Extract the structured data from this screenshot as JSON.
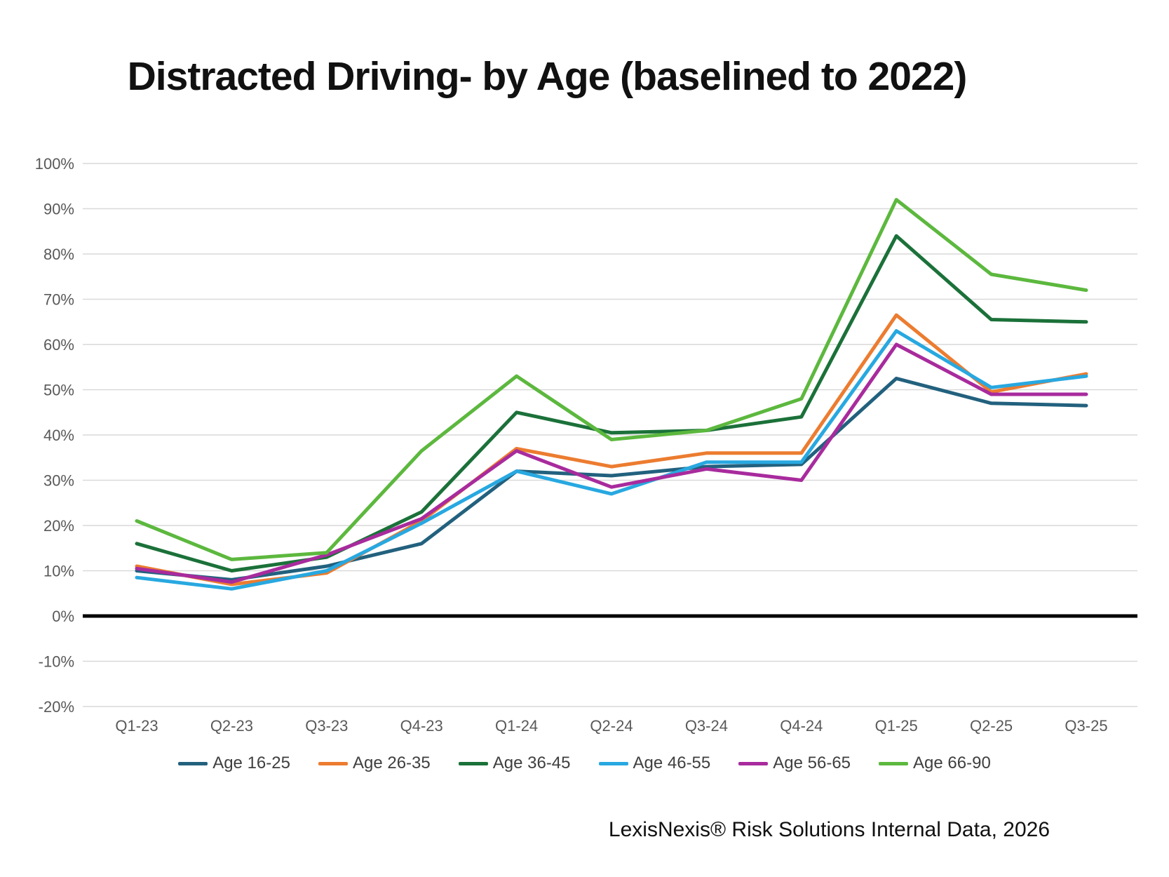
{
  "chart_data": {
    "type": "line",
    "title": "Distracted Driving- by Age (baselined to 2022)",
    "categories": [
      "Q1-23",
      "Q2-23",
      "Q3-23",
      "Q4-23",
      "Q1-24",
      "Q2-24",
      "Q3-24",
      "Q4-24",
      "Q1-25",
      "Q2-25",
      "Q3-25"
    ],
    "series": [
      {
        "name": "Age 16-25",
        "color": "#22617E",
        "values": [
          10,
          8,
          11,
          16,
          32,
          31,
          33,
          33.5,
          52.5,
          47,
          46.5
        ]
      },
      {
        "name": "Age 26-35",
        "color": "#EC7C30",
        "values": [
          11,
          7,
          9.5,
          21,
          37,
          33,
          36,
          36,
          66.5,
          49.5,
          53.5
        ]
      },
      {
        "name": "Age 36-45",
        "color": "#1B7139",
        "values": [
          16,
          10,
          13,
          23,
          45,
          40.5,
          41,
          44,
          84,
          65.5,
          65
        ]
      },
      {
        "name": "Age 46-55",
        "color": "#28A8E0",
        "values": [
          8.5,
          6,
          10,
          20.5,
          32,
          27,
          34,
          34,
          63,
          50.5,
          53
        ]
      },
      {
        "name": "Age 56-65",
        "color": "#A82B9D",
        "values": [
          10.5,
          7.5,
          13.5,
          21.5,
          36.5,
          28.5,
          32.5,
          30,
          60,
          49,
          49
        ]
      },
      {
        "name": "Age 66-90",
        "color": "#5CB83E",
        "values": [
          21,
          12.5,
          14,
          36.5,
          53,
          39,
          41,
          48,
          92,
          75.5,
          72
        ]
      }
    ],
    "y_ticks": [
      "100%",
      "90%",
      "80%",
      "70%",
      "60%",
      "50%",
      "40%",
      "30%",
      "20%",
      "10%",
      "0%",
      "-10%",
      "-20%"
    ],
    "ylim": [
      -20,
      100
    ],
    "grid": true,
    "legend_position": "bottom",
    "grid_color": "#D9D9D9",
    "zero_line_color": "#000000"
  },
  "footer": {
    "source": "LexisNexis® Risk Solutions Internal Data, 2026"
  }
}
